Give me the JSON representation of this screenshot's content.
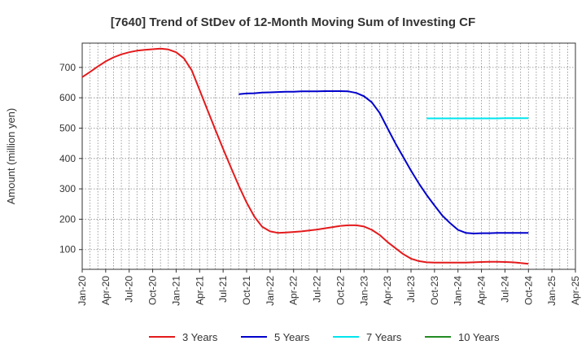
{
  "chart_data": {
    "type": "line",
    "title": "[7640]  Trend of StDev of 12-Month Moving Sum of Investing CF",
    "xlabel": "",
    "ylabel": "Amount (million yen)",
    "ylim": [
      35,
      780
    ],
    "yticks": [
      100,
      200,
      300,
      400,
      500,
      600,
      700
    ],
    "xlim": [
      "2020-01",
      "2025-04"
    ],
    "xticks": [
      "Jan-20",
      "Apr-20",
      "Jul-20",
      "Oct-20",
      "Jan-21",
      "Apr-21",
      "Jul-21",
      "Oct-21",
      "Jan-22",
      "Apr-22",
      "Jul-22",
      "Oct-22",
      "Jan-23",
      "Apr-23",
      "Jul-23",
      "Oct-23",
      "Jan-24",
      "Apr-24",
      "Jul-24",
      "Oct-24",
      "Jan-25",
      "Apr-25"
    ],
    "grid": true,
    "legend_position": "bottom",
    "series": [
      {
        "name": "3 Years",
        "color": "#e41a1c",
        "points": [
          [
            "2020-01",
            668
          ],
          [
            "2020-02",
            685
          ],
          [
            "2020-03",
            703
          ],
          [
            "2020-04",
            720
          ],
          [
            "2020-05",
            733
          ],
          [
            "2020-06",
            743
          ],
          [
            "2020-07",
            750
          ],
          [
            "2020-08",
            755
          ],
          [
            "2020-09",
            758
          ],
          [
            "2020-10",
            760
          ],
          [
            "2020-11",
            762
          ],
          [
            "2020-12",
            759
          ],
          [
            "2021-01",
            750
          ],
          [
            "2021-02",
            730
          ],
          [
            "2021-03",
            690
          ],
          [
            "2021-04",
            625
          ],
          [
            "2021-05",
            560
          ],
          [
            "2021-06",
            495
          ],
          [
            "2021-07",
            432
          ],
          [
            "2021-08",
            370
          ],
          [
            "2021-09",
            310
          ],
          [
            "2021-10",
            255
          ],
          [
            "2021-11",
            208
          ],
          [
            "2021-12",
            175
          ],
          [
            "2022-01",
            160
          ],
          [
            "2022-02",
            155
          ],
          [
            "2022-03",
            156
          ],
          [
            "2022-04",
            158
          ],
          [
            "2022-05",
            160
          ],
          [
            "2022-06",
            163
          ],
          [
            "2022-07",
            166
          ],
          [
            "2022-08",
            170
          ],
          [
            "2022-09",
            174
          ],
          [
            "2022-10",
            178
          ],
          [
            "2022-11",
            180
          ],
          [
            "2022-12",
            180
          ],
          [
            "2023-01",
            176
          ],
          [
            "2023-02",
            165
          ],
          [
            "2023-03",
            148
          ],
          [
            "2023-04",
            125
          ],
          [
            "2023-05",
            105
          ],
          [
            "2023-06",
            85
          ],
          [
            "2023-07",
            70
          ],
          [
            "2023-08",
            62
          ],
          [
            "2023-09",
            58
          ],
          [
            "2023-10",
            57
          ],
          [
            "2023-11",
            57
          ],
          [
            "2023-12",
            57
          ],
          [
            "2024-01",
            57
          ],
          [
            "2024-02",
            57
          ],
          [
            "2024-03",
            58
          ],
          [
            "2024-04",
            59
          ],
          [
            "2024-05",
            60
          ],
          [
            "2024-06",
            60
          ],
          [
            "2024-07",
            59
          ],
          [
            "2024-08",
            58
          ],
          [
            "2024-09",
            56
          ],
          [
            "2024-10",
            53
          ]
        ]
      },
      {
        "name": "5 Years",
        "color": "#0000cc",
        "points": [
          [
            "2021-09",
            612
          ],
          [
            "2021-10",
            614
          ],
          [
            "2021-11",
            615
          ],
          [
            "2021-12",
            617
          ],
          [
            "2022-01",
            618
          ],
          [
            "2022-02",
            619
          ],
          [
            "2022-03",
            620
          ],
          [
            "2022-04",
            620
          ],
          [
            "2022-05",
            621
          ],
          [
            "2022-06",
            621
          ],
          [
            "2022-07",
            621
          ],
          [
            "2022-08",
            622
          ],
          [
            "2022-09",
            622
          ],
          [
            "2022-10",
            622
          ],
          [
            "2022-11",
            621
          ],
          [
            "2022-12",
            616
          ],
          [
            "2023-01",
            605
          ],
          [
            "2023-02",
            585
          ],
          [
            "2023-03",
            550
          ],
          [
            "2023-04",
            500
          ],
          [
            "2023-05",
            450
          ],
          [
            "2023-06",
            405
          ],
          [
            "2023-07",
            360
          ],
          [
            "2023-08",
            318
          ],
          [
            "2023-09",
            280
          ],
          [
            "2023-10",
            245
          ],
          [
            "2023-11",
            212
          ],
          [
            "2023-12",
            187
          ],
          [
            "2024-01",
            165
          ],
          [
            "2024-02",
            155
          ],
          [
            "2024-03",
            153
          ],
          [
            "2024-04",
            154
          ],
          [
            "2024-05",
            154
          ],
          [
            "2024-06",
            155
          ],
          [
            "2024-07",
            155
          ],
          [
            "2024-08",
            155
          ],
          [
            "2024-09",
            155
          ],
          [
            "2024-10",
            155
          ]
        ]
      },
      {
        "name": "7 Years",
        "color": "#00e5ee",
        "points": [
          [
            "2023-09",
            532
          ],
          [
            "2023-10",
            532
          ],
          [
            "2023-11",
            532
          ],
          [
            "2023-12",
            532
          ],
          [
            "2024-01",
            532
          ],
          [
            "2024-02",
            532
          ],
          [
            "2024-03",
            532
          ],
          [
            "2024-04",
            532
          ],
          [
            "2024-05",
            532
          ],
          [
            "2024-06",
            532
          ],
          [
            "2024-07",
            533
          ],
          [
            "2024-08",
            533
          ],
          [
            "2024-09",
            533
          ],
          [
            "2024-10",
            533
          ]
        ]
      },
      {
        "name": "10 Years",
        "color": "#228b22",
        "points": []
      }
    ]
  }
}
